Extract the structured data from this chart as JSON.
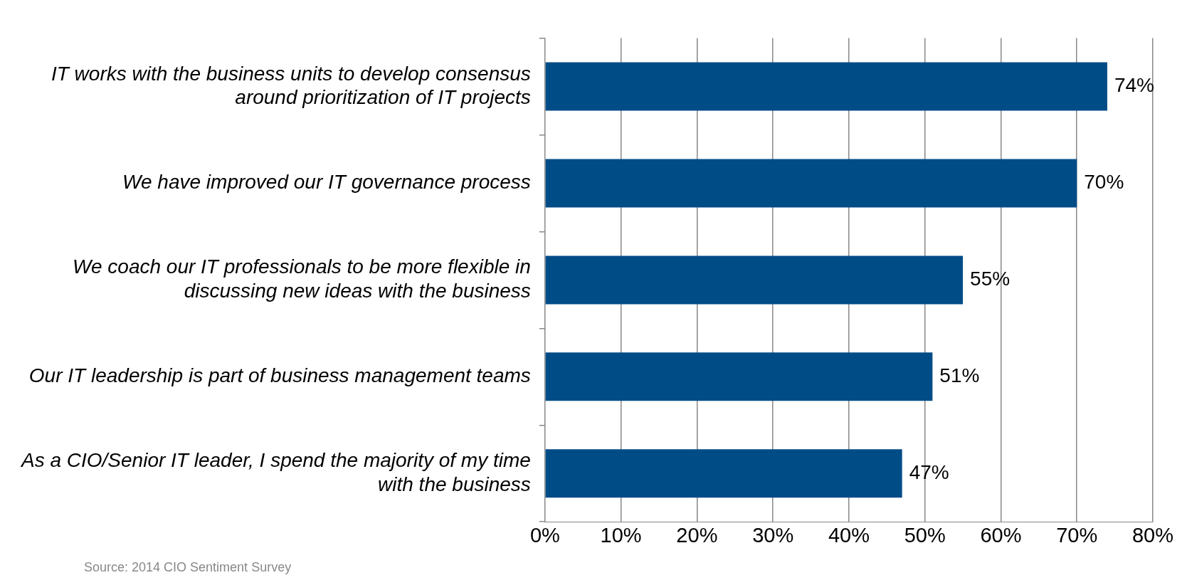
{
  "chart_data": {
    "type": "bar",
    "orientation": "horizontal",
    "categories": [
      "IT works with the business units to develop consensus around prioritization of IT projects",
      "We have improved our IT governance process",
      "We coach our IT professionals to be more flexible in discussing new ideas with the business",
      "Our IT leadership is part of business management teams",
      "As a CIO/Senior IT leader, I spend the majority of my time with the business"
    ],
    "values": [
      74,
      70,
      55,
      51,
      47
    ],
    "color": "#004c87",
    "xlim": [
      0,
      80
    ],
    "xticks": [
      {
        "value": 0,
        "label": "0%"
      },
      {
        "value": 10,
        "label": "10%"
      },
      {
        "value": 20,
        "label": "20%"
      },
      {
        "value": 30,
        "label": "30%"
      },
      {
        "value": 40,
        "label": "40%"
      },
      {
        "value": 50,
        "label": "50%"
      },
      {
        "value": 60,
        "label": "60%"
      },
      {
        "value": 70,
        "label": "70%"
      },
      {
        "value": 80,
        "label": "80%"
      }
    ],
    "value_labels": [
      "74%",
      "70%",
      "55%",
      "51%",
      "47%"
    ],
    "grid": "x",
    "legend": false,
    "annotations": [
      "Source: 2014 CIO Sentiment Survey"
    ]
  }
}
